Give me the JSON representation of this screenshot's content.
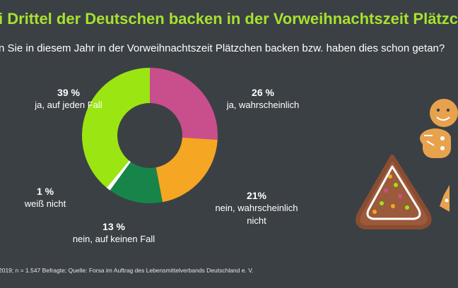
{
  "title": "i Drittel der Deutschen backen in der Vorweihnachtszeit Plätzc",
  "subtitle": "n Sie in diesem Jahr in der Vorweihnachtszeit Plätzchen backen bzw. haben dies schon getan?",
  "footnote": "2019; n = 1.547 Befragte;  Quelle: Forsa im Auftrag des Lebensmittelverbands Deutschland e. V.",
  "chart_data": {
    "type": "pie",
    "variant": "donut",
    "slices": [
      {
        "label": "ja, wahrscheinlich",
        "pct_text": "26 %",
        "value": 26,
        "color": "#c84f8c"
      },
      {
        "label": "nein, wahrscheinlich nicht",
        "pct_text": "21%",
        "value": 21,
        "color": "#f5a623"
      },
      {
        "label": "nein, auf keinen Fall",
        "pct_text": "13 %",
        "value": 13,
        "color": "#17854a"
      },
      {
        "label": "weiß nicht",
        "pct_text": "1 %",
        "value": 1,
        "color": "#ffffff"
      },
      {
        "label": "ja, auf jeden Fall",
        "pct_text": "39 %",
        "value": 39,
        "color": "#9be512"
      }
    ]
  },
  "labels": {
    "ja_auf_jeden_fall": {
      "pct": "39 %",
      "text": "ja, auf jeden Fall"
    },
    "ja_wahrscheinlich": {
      "pct": "26 %",
      "text": "ja, wahrscheinlich"
    },
    "nein_wahrscheinlich_nicht": {
      "pct": "21%",
      "text_line1": "nein, wahrscheinlich",
      "text_line2": "nicht"
    },
    "nein_auf_keinen_fall": {
      "pct": "13 %",
      "text": "nein, auf keinen Fall"
    },
    "weiss_nicht": {
      "pct": "1 %",
      "text": "weiß nicht"
    }
  },
  "decorations": {
    "cookie_tree": {
      "icon": "gingerbread-tree-icon",
      "color": "#9b5a3c",
      "icing": "#ffffff"
    },
    "cookie_man": {
      "icon": "gingerbread-man-icon",
      "color": "#e8a24e",
      "icing": "#ffffff"
    },
    "cookie_star": {
      "icon": "gingerbread-star-icon",
      "color": "#e8a24e"
    }
  }
}
